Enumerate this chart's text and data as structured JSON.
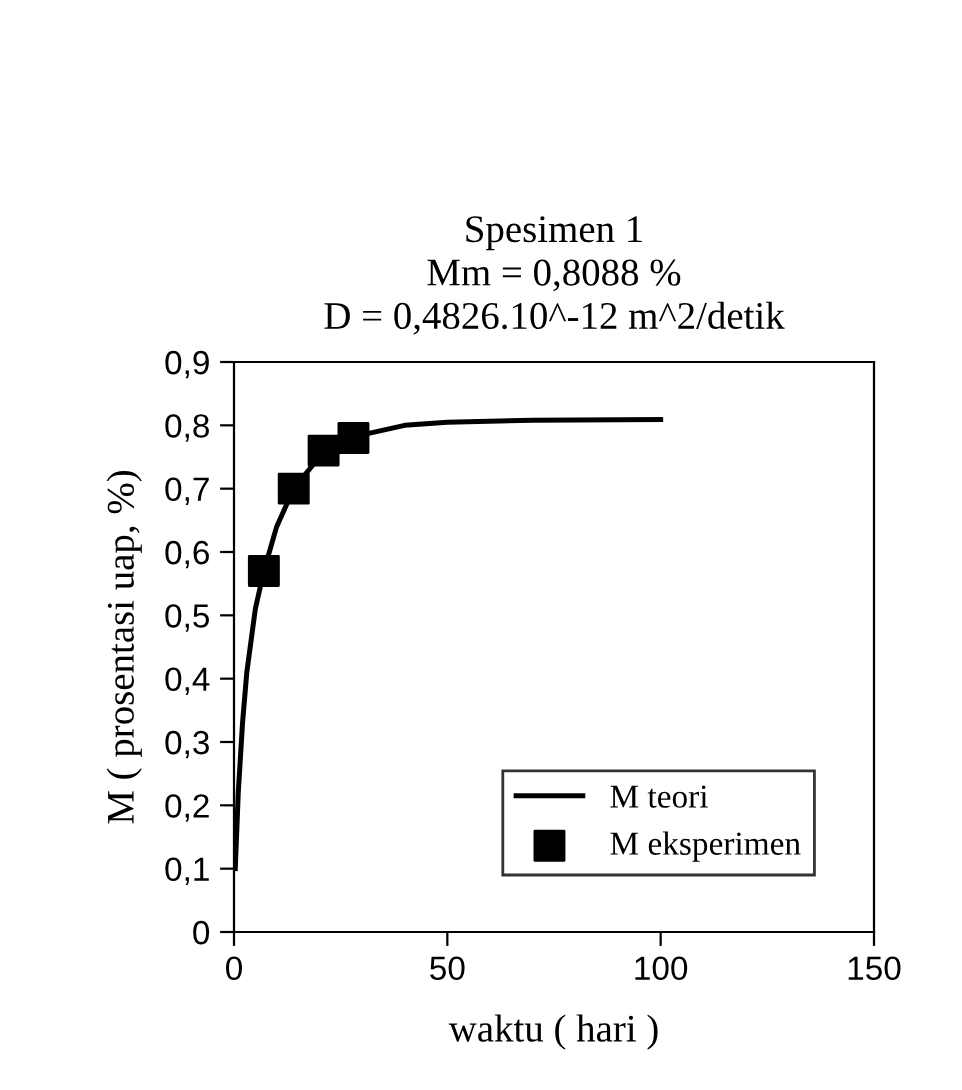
{
  "chart_data": {
    "type": "line",
    "title": "Spesimen 1\nMm = 0,8088 %\nD = 0,4826.10^-12 m^2/detik",
    "xlabel": "waktu ( hari )",
    "ylabel": "M ( prosentasi uap, %)",
    "xlim": [
      0,
      150
    ],
    "xticks": [
      0,
      50,
      100,
      150
    ],
    "ylim": [
      0,
      0.9
    ],
    "yticks": [
      {
        "value": 0,
        "label": "0"
      },
      {
        "value": 0.1,
        "label": "0,1"
      },
      {
        "value": 0.2,
        "label": "0,2"
      },
      {
        "value": 0.3,
        "label": "0,3"
      },
      {
        "value": 0.4,
        "label": "0,4"
      },
      {
        "value": 0.5,
        "label": "0,5"
      },
      {
        "value": 0.6,
        "label": "0,6"
      },
      {
        "value": 0.7,
        "label": "0,7"
      },
      {
        "value": 0.8,
        "label": "0,8"
      },
      {
        "value": 0.9,
        "label": "0,9"
      }
    ],
    "grid": false,
    "legend": "bottom right",
    "series": [
      {
        "name": "M teori",
        "type": "line",
        "color": "#000000",
        "marker": "none",
        "line_style": "solid",
        "x": [
          0.3,
          1,
          2,
          3,
          5,
          7,
          10,
          14,
          20,
          30,
          40,
          50,
          70,
          100
        ],
        "values": [
          0.1,
          0.22,
          0.33,
          0.41,
          0.51,
          0.57,
          0.64,
          0.7,
          0.75,
          0.785,
          0.8,
          0.805,
          0.808,
          0.809
        ]
      },
      {
        "name": "M eksperimen",
        "type": "scatter",
        "color": "#000000",
        "marker": "square",
        "x": [
          7,
          14,
          21,
          28
        ],
        "values": [
          0.57,
          0.7,
          0.76,
          0.78
        ]
      }
    ]
  }
}
